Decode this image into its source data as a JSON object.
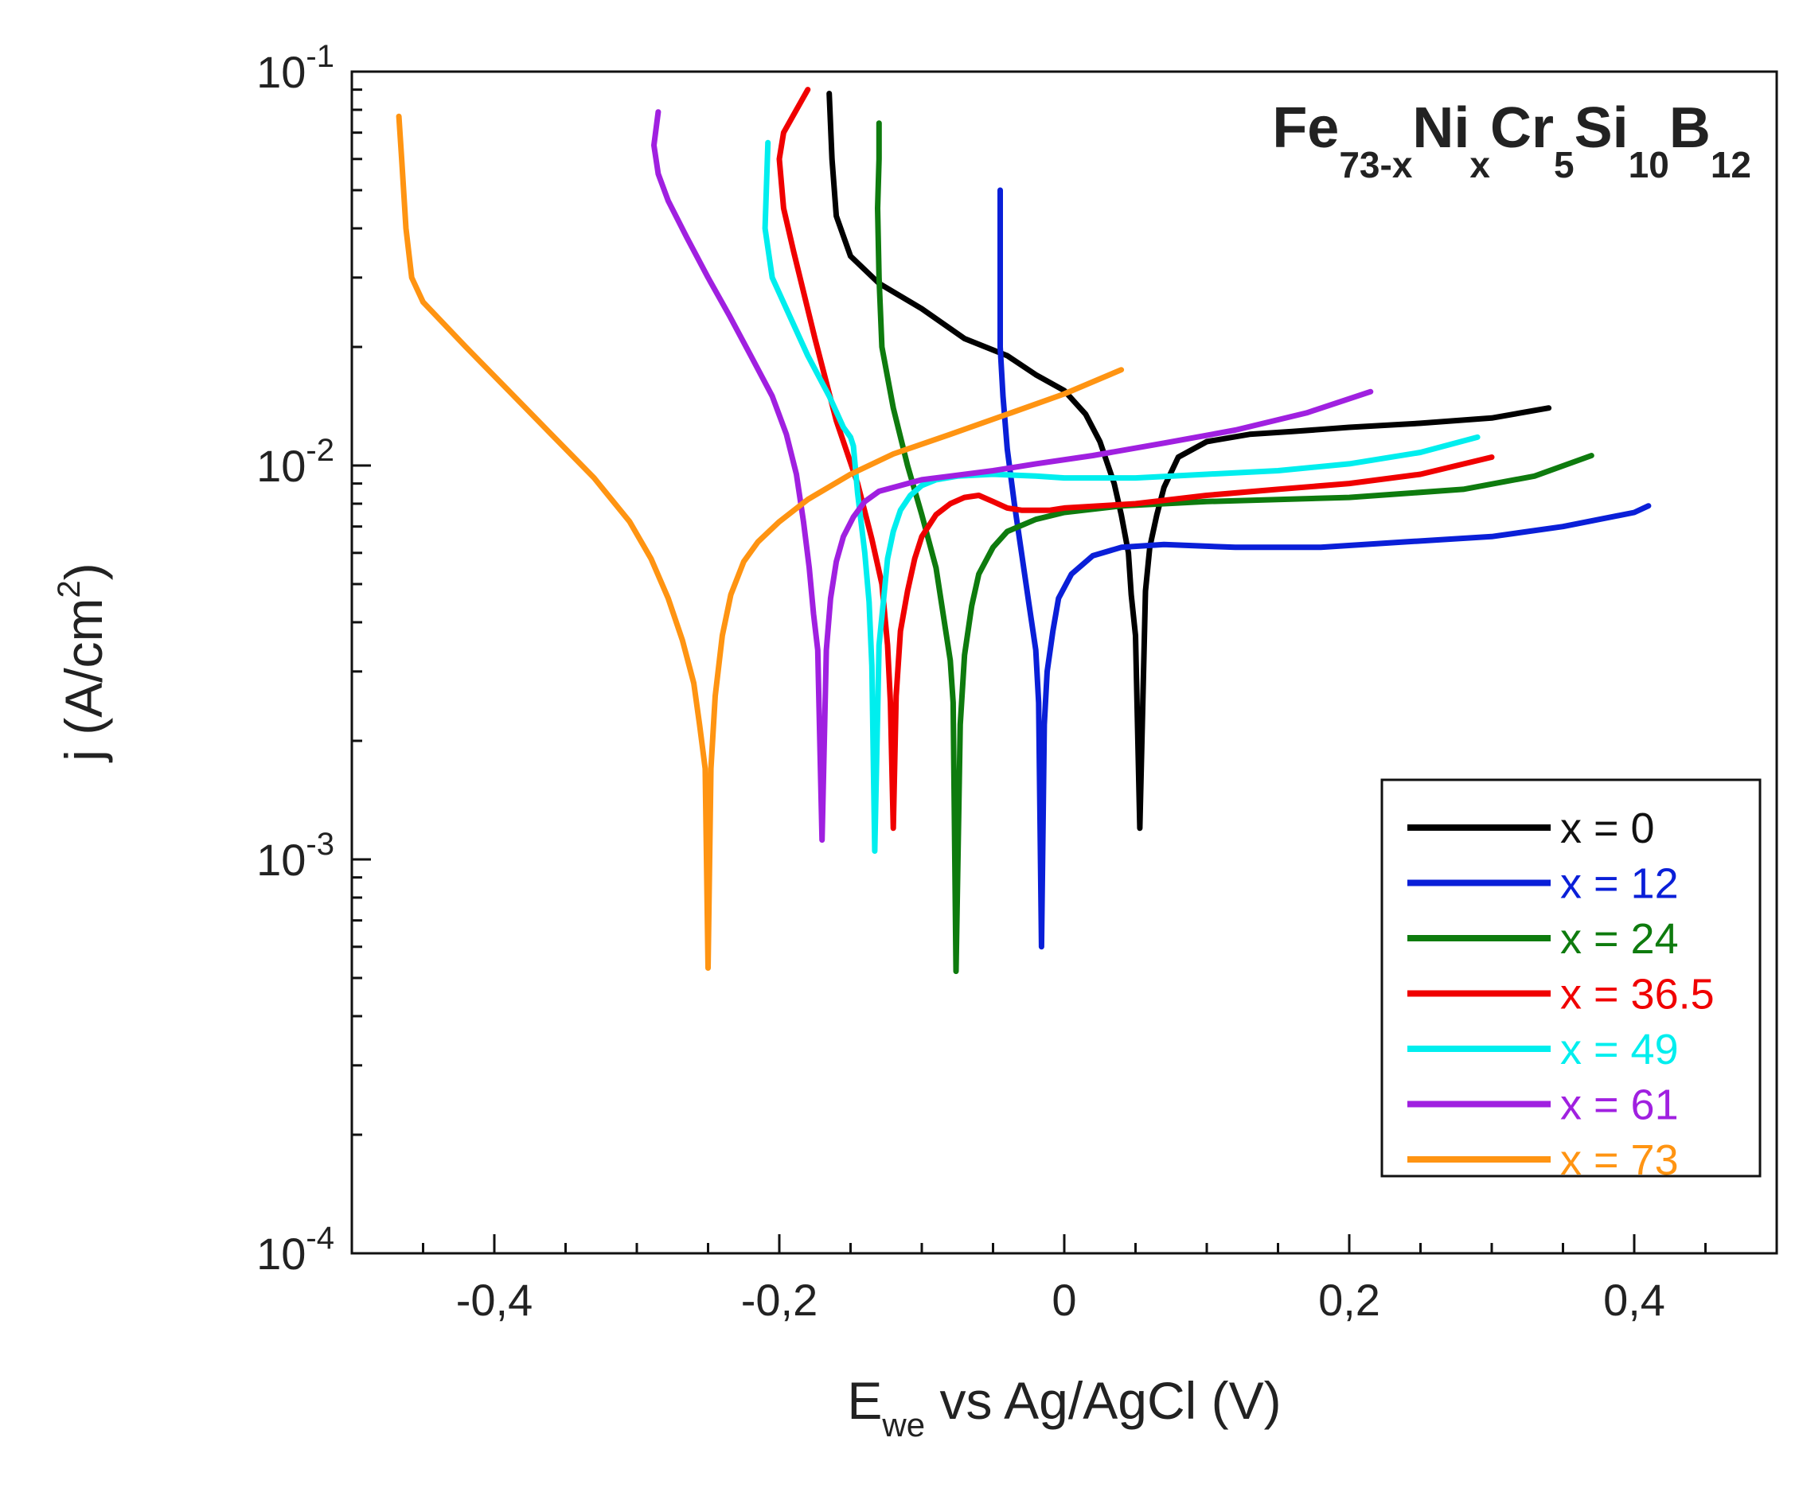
{
  "chart_data": {
    "type": "line",
    "title": {
      "parts": [
        {
          "text": "Fe",
          "style": "main"
        },
        {
          "text": "73-x",
          "style": "sub"
        },
        {
          "text": "Ni",
          "style": "main"
        },
        {
          "text": "x",
          "style": "sub"
        },
        {
          "text": "Cr",
          "style": "main"
        },
        {
          "text": "5",
          "style": "sub"
        },
        {
          "text": "Si",
          "style": "main"
        },
        {
          "text": "10",
          "style": "sub"
        },
        {
          "text": "B",
          "style": "main"
        },
        {
          "text": "12",
          "style": "sub"
        }
      ]
    },
    "xlabel": {
      "main": "E",
      "sub": "we",
      "rest": " vs Ag/AgCl (V)"
    },
    "ylabel": {
      "main": "j (A/cm",
      "sup": "2",
      "rest": ")"
    },
    "x_axis": {
      "range": [
        -0.5,
        0.5
      ],
      "ticks": [
        -0.4,
        -0.2,
        0,
        0.2,
        0.4
      ],
      "tick_labels": [
        "-0,4",
        "-0,2",
        "0",
        "0,2",
        "0,4"
      ],
      "minor_ticks": [
        -0.45,
        -0.35,
        -0.3,
        -0.25,
        -0.15,
        -0.1,
        -0.05,
        0.05,
        0.1,
        0.15,
        0.25,
        0.3,
        0.35,
        0.45
      ]
    },
    "y_axis": {
      "scale": "log",
      "range": [
        0.0001,
        0.1
      ],
      "ticks": [
        {
          "value": 0.0001,
          "base": "10",
          "exp": "-4"
        },
        {
          "value": 0.001,
          "base": "10",
          "exp": "-3"
        },
        {
          "value": 0.01,
          "base": "10",
          "exp": "-2"
        },
        {
          "value": 0.1,
          "base": "10",
          "exp": "-1"
        }
      ]
    },
    "legend": {
      "position": "bottom-right"
    },
    "series": [
      {
        "name": "x = 0",
        "color": "#000000",
        "x": [
          -0.165,
          -0.163,
          -0.16,
          -0.15,
          -0.13,
          -0.1,
          -0.07,
          -0.04,
          -0.02,
          0.0,
          0.015,
          0.025,
          0.035,
          0.04,
          0.045,
          0.047,
          0.05,
          0.053,
          0.057,
          0.06,
          0.065,
          0.07,
          0.08,
          0.1,
          0.13,
          0.16,
          0.2,
          0.25,
          0.3,
          0.34
        ],
        "y": [
          0.088,
          0.06,
          0.043,
          0.034,
          0.029,
          0.025,
          0.021,
          0.019,
          0.017,
          0.0155,
          0.0135,
          0.0115,
          0.009,
          0.0075,
          0.006,
          0.0047,
          0.0037,
          0.0012,
          0.0048,
          0.0062,
          0.0075,
          0.0088,
          0.0105,
          0.0115,
          0.012,
          0.0122,
          0.0125,
          0.0128,
          0.0132,
          0.014
        ]
      },
      {
        "name": "x = 12",
        "color": "#0a1fd8",
        "x": [
          -0.045,
          -0.045,
          -0.043,
          -0.04,
          -0.035,
          -0.03,
          -0.025,
          -0.02,
          -0.018,
          -0.016,
          -0.014,
          -0.012,
          -0.008,
          -0.004,
          0.005,
          0.02,
          0.04,
          0.07,
          0.12,
          0.18,
          0.24,
          0.3,
          0.35,
          0.4,
          0.41
        ],
        "y": [
          0.05,
          0.02,
          0.015,
          0.011,
          0.008,
          0.006,
          0.0045,
          0.0034,
          0.0025,
          0.0006,
          0.0022,
          0.003,
          0.0038,
          0.0046,
          0.0053,
          0.0059,
          0.0062,
          0.0063,
          0.0062,
          0.0062,
          0.0064,
          0.0066,
          0.007,
          0.0076,
          0.0079
        ]
      },
      {
        "name": "x = 24",
        "color": "#0e7b0e",
        "x": [
          -0.13,
          -0.13,
          -0.131,
          -0.13,
          -0.128,
          -0.12,
          -0.11,
          -0.1,
          -0.09,
          -0.085,
          -0.08,
          -0.078,
          -0.076,
          -0.073,
          -0.07,
          -0.065,
          -0.06,
          -0.05,
          -0.04,
          -0.02,
          0.0,
          0.04,
          0.1,
          0.2,
          0.28,
          0.33,
          0.37
        ],
        "y": [
          0.074,
          0.06,
          0.045,
          0.03,
          0.02,
          0.014,
          0.01,
          0.0075,
          0.0055,
          0.0042,
          0.0032,
          0.0025,
          0.00052,
          0.0022,
          0.0033,
          0.0044,
          0.0053,
          0.0062,
          0.0068,
          0.0073,
          0.0076,
          0.0079,
          0.0081,
          0.0083,
          0.0087,
          0.0094,
          0.0106
        ]
      },
      {
        "name": "x = 36.5",
        "color": "#f00000",
        "x": [
          -0.18,
          -0.188,
          -0.197,
          -0.2,
          -0.197,
          -0.19,
          -0.175,
          -0.16,
          -0.145,
          -0.135,
          -0.128,
          -0.124,
          -0.122,
          -0.12,
          -0.118,
          -0.115,
          -0.11,
          -0.105,
          -0.1,
          -0.09,
          -0.08,
          -0.07,
          -0.06,
          -0.05,
          -0.04,
          -0.03,
          -0.01,
          0.0,
          0.05,
          0.1,
          0.15,
          0.2,
          0.25,
          0.3
        ],
        "y": [
          0.09,
          0.08,
          0.07,
          0.06,
          0.045,
          0.035,
          0.021,
          0.013,
          0.009,
          0.0065,
          0.005,
          0.0035,
          0.0025,
          0.0012,
          0.0026,
          0.0038,
          0.0048,
          0.0058,
          0.0066,
          0.0075,
          0.008,
          0.0083,
          0.0084,
          0.0081,
          0.0078,
          0.0077,
          0.0077,
          0.0078,
          0.008,
          0.0084,
          0.0087,
          0.009,
          0.0095,
          0.0105
        ]
      },
      {
        "name": "x = 49",
        "color": "#00eeee",
        "x": [
          -0.208,
          -0.21,
          -0.205,
          -0.195,
          -0.18,
          -0.165,
          -0.155,
          -0.15,
          -0.148,
          -0.145,
          -0.14,
          -0.137,
          -0.135,
          -0.133,
          -0.13,
          -0.127,
          -0.124,
          -0.12,
          -0.115,
          -0.108,
          -0.1,
          -0.09,
          -0.075,
          -0.05,
          -0.02,
          0.0,
          0.05,
          0.1,
          0.15,
          0.2,
          0.25,
          0.29
        ],
        "y": [
          0.066,
          0.04,
          0.03,
          0.025,
          0.019,
          0.015,
          0.0125,
          0.0118,
          0.0112,
          0.0085,
          0.006,
          0.0045,
          0.0031,
          0.00105,
          0.0035,
          0.0045,
          0.0058,
          0.0068,
          0.0077,
          0.0084,
          0.0089,
          0.0092,
          0.0094,
          0.0095,
          0.0094,
          0.0093,
          0.0093,
          0.0095,
          0.0097,
          0.0101,
          0.0108,
          0.0118
        ]
      },
      {
        "name": "x = 61",
        "color": "#a020e0",
        "x": [
          -0.285,
          -0.288,
          -0.285,
          -0.278,
          -0.265,
          -0.25,
          -0.235,
          -0.22,
          -0.205,
          -0.195,
          -0.188,
          -0.183,
          -0.179,
          -0.176,
          -0.173,
          -0.17,
          -0.167,
          -0.164,
          -0.16,
          -0.155,
          -0.148,
          -0.14,
          -0.13,
          -0.115,
          -0.1,
          -0.08,
          -0.05,
          -0.02,
          0.02,
          0.07,
          0.12,
          0.17,
          0.215
        ],
        "y": [
          0.079,
          0.065,
          0.055,
          0.047,
          0.038,
          0.03,
          0.024,
          0.019,
          0.015,
          0.012,
          0.0095,
          0.0072,
          0.0055,
          0.0042,
          0.0034,
          0.00112,
          0.0034,
          0.0046,
          0.0057,
          0.0066,
          0.0074,
          0.0081,
          0.0086,
          0.0089,
          0.0092,
          0.0094,
          0.0097,
          0.0101,
          0.0106,
          0.0114,
          0.0123,
          0.0136,
          0.0154
        ]
      },
      {
        "name": "x = 73",
        "color": "#ff9412",
        "x": [
          -0.467,
          -0.465,
          -0.462,
          -0.458,
          -0.45,
          -0.42,
          -0.39,
          -0.36,
          -0.33,
          -0.305,
          -0.29,
          -0.278,
          -0.268,
          -0.26,
          -0.256,
          -0.252,
          -0.25,
          -0.248,
          -0.245,
          -0.24,
          -0.234,
          -0.225,
          -0.215,
          -0.2,
          -0.18,
          -0.15,
          -0.12,
          -0.08,
          -0.04,
          0.0,
          0.04
        ],
        "y": [
          0.077,
          0.06,
          0.04,
          0.03,
          0.026,
          0.02,
          0.0155,
          0.012,
          0.0093,
          0.0072,
          0.0058,
          0.0046,
          0.0036,
          0.0028,
          0.0022,
          0.0017,
          0.00053,
          0.0017,
          0.0026,
          0.0037,
          0.0047,
          0.0057,
          0.0064,
          0.0072,
          0.0082,
          0.0095,
          0.0107,
          0.012,
          0.0135,
          0.0152,
          0.0175
        ]
      }
    ]
  }
}
